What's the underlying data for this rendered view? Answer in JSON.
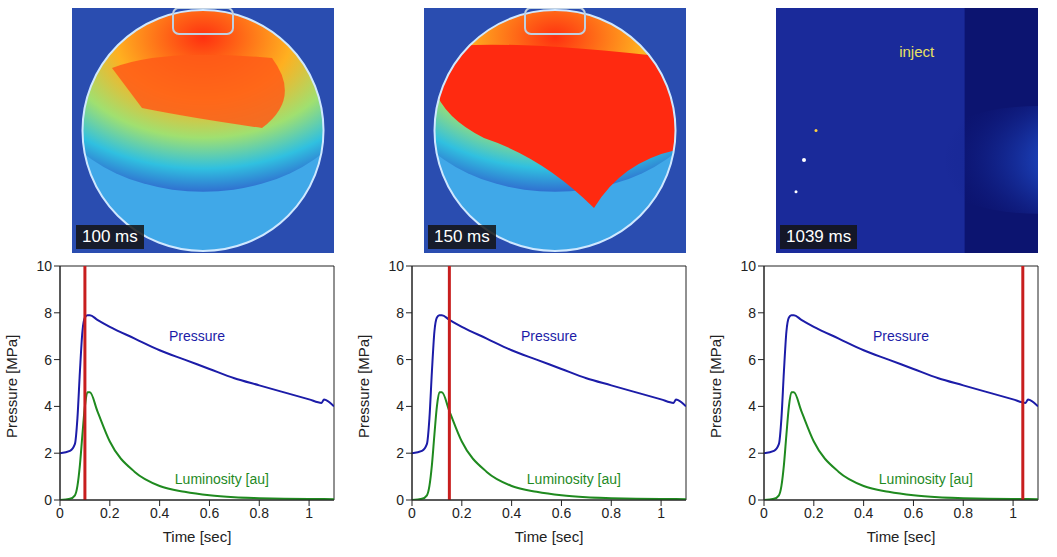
{
  "chart_data": [
    {
      "type": "line",
      "x_label": "Time [sec]",
      "y_label": "Pressure [MPa]",
      "image": {
        "label": "100 ms"
      },
      "x": [
        0,
        0.04,
        0.06,
        0.07,
        0.08,
        0.09,
        0.1,
        0.11,
        0.12,
        0.15,
        0.2,
        0.3,
        0.4,
        0.5,
        0.6,
        0.7,
        0.8,
        0.9,
        1.0,
        1.05,
        1.06,
        1.1
      ],
      "series": [
        {
          "name": "Pressure",
          "color": "#1c1ca8",
          "values": [
            2.0,
            2.1,
            2.4,
            3.5,
            5.5,
            7.2,
            7.8,
            7.9,
            7.9,
            7.7,
            7.4,
            6.9,
            6.4,
            6.0,
            5.6,
            5.2,
            4.9,
            4.6,
            4.3,
            4.15,
            4.3,
            4.0
          ]
        },
        {
          "name": "Luminosity [au]",
          "color": "#1f8a1f",
          "values": [
            0,
            0.05,
            0.2,
            0.6,
            1.5,
            2.8,
            4.0,
            4.6,
            4.6,
            3.8,
            2.5,
            1.2,
            0.6,
            0.35,
            0.2,
            0.12,
            0.08,
            0.05,
            0.04,
            0.04,
            0.04,
            0.03
          ]
        }
      ],
      "annotations": [
        {
          "text": "Pressure",
          "x": 0.55,
          "y": 7.0,
          "color": "#1c1ca8"
        },
        {
          "text": "Luminosity [au]",
          "x": 0.65,
          "y": 0.9,
          "color": "#1f8a1f"
        }
      ],
      "cursor_x": 0.1,
      "xlim": [
        0,
        1.1
      ],
      "xticks": [
        0,
        0.2,
        0.4,
        0.6,
        0.8,
        1
      ],
      "ylim": [
        0,
        10
      ],
      "yticks": [
        0,
        2,
        4,
        6,
        8,
        10
      ]
    },
    {
      "type": "line",
      "x_label": "Time [sec]",
      "y_label": "Pressure [MPa]",
      "image": {
        "label": "150 ms"
      },
      "x": [
        0,
        0.04,
        0.06,
        0.07,
        0.08,
        0.09,
        0.1,
        0.11,
        0.12,
        0.15,
        0.2,
        0.3,
        0.4,
        0.5,
        0.6,
        0.7,
        0.8,
        0.9,
        1.0,
        1.05,
        1.06,
        1.1
      ],
      "series": [
        {
          "name": "Pressure",
          "color": "#1c1ca8",
          "values": [
            2.0,
            2.1,
            2.4,
            3.5,
            5.5,
            7.2,
            7.8,
            7.9,
            7.9,
            7.7,
            7.4,
            6.9,
            6.4,
            6.0,
            5.6,
            5.2,
            4.9,
            4.6,
            4.3,
            4.15,
            4.3,
            4.0
          ]
        },
        {
          "name": "Luminosity [au]",
          "color": "#1f8a1f",
          "values": [
            0,
            0.05,
            0.2,
            0.6,
            1.5,
            2.8,
            4.0,
            4.6,
            4.6,
            3.8,
            2.5,
            1.2,
            0.6,
            0.35,
            0.2,
            0.12,
            0.08,
            0.05,
            0.04,
            0.04,
            0.04,
            0.03
          ]
        }
      ],
      "annotations": [
        {
          "text": "Pressure",
          "x": 0.55,
          "y": 7.0,
          "color": "#1c1ca8"
        },
        {
          "text": "Luminosity [au]",
          "x": 0.65,
          "y": 0.9,
          "color": "#1f8a1f"
        }
      ],
      "cursor_x": 0.15,
      "xlim": [
        0,
        1.1
      ],
      "xticks": [
        0,
        0.2,
        0.4,
        0.6,
        0.8,
        1
      ],
      "ylim": [
        0,
        10
      ],
      "yticks": [
        0,
        2,
        4,
        6,
        8,
        10
      ]
    },
    {
      "type": "line",
      "x_label": "Time [sec]",
      "y_label": "Pressure [MPa]",
      "image": {
        "label": "1039 ms",
        "inject_label": "inject"
      },
      "x": [
        0,
        0.04,
        0.06,
        0.07,
        0.08,
        0.09,
        0.1,
        0.11,
        0.12,
        0.15,
        0.2,
        0.3,
        0.4,
        0.5,
        0.6,
        0.7,
        0.8,
        0.9,
        1.0,
        1.05,
        1.06,
        1.1
      ],
      "series": [
        {
          "name": "Pressure",
          "color": "#1c1ca8",
          "values": [
            2.0,
            2.1,
            2.4,
            3.5,
            5.5,
            7.2,
            7.8,
            7.9,
            7.9,
            7.7,
            7.4,
            6.9,
            6.4,
            6.0,
            5.6,
            5.2,
            4.9,
            4.6,
            4.3,
            4.15,
            4.3,
            4.0
          ]
        },
        {
          "name": "Luminosity [au]",
          "color": "#1f8a1f",
          "values": [
            0,
            0.05,
            0.2,
            0.6,
            1.5,
            2.8,
            4.0,
            4.6,
            4.6,
            3.8,
            2.5,
            1.2,
            0.6,
            0.35,
            0.2,
            0.12,
            0.08,
            0.05,
            0.04,
            0.04,
            0.04,
            0.03
          ]
        }
      ],
      "annotations": [
        {
          "text": "Pressure",
          "x": 0.55,
          "y": 7.0,
          "color": "#1c1ca8"
        },
        {
          "text": "Luminosity [au]",
          "x": 0.65,
          "y": 0.9,
          "color": "#1f8a1f"
        }
      ],
      "cursor_x": 1.039,
      "xlim": [
        0,
        1.1
      ],
      "xticks": [
        0,
        0.2,
        0.4,
        0.6,
        0.8,
        1
      ],
      "ylim": [
        0,
        10
      ],
      "yticks": [
        0,
        2,
        4,
        6,
        8,
        10
      ]
    }
  ]
}
